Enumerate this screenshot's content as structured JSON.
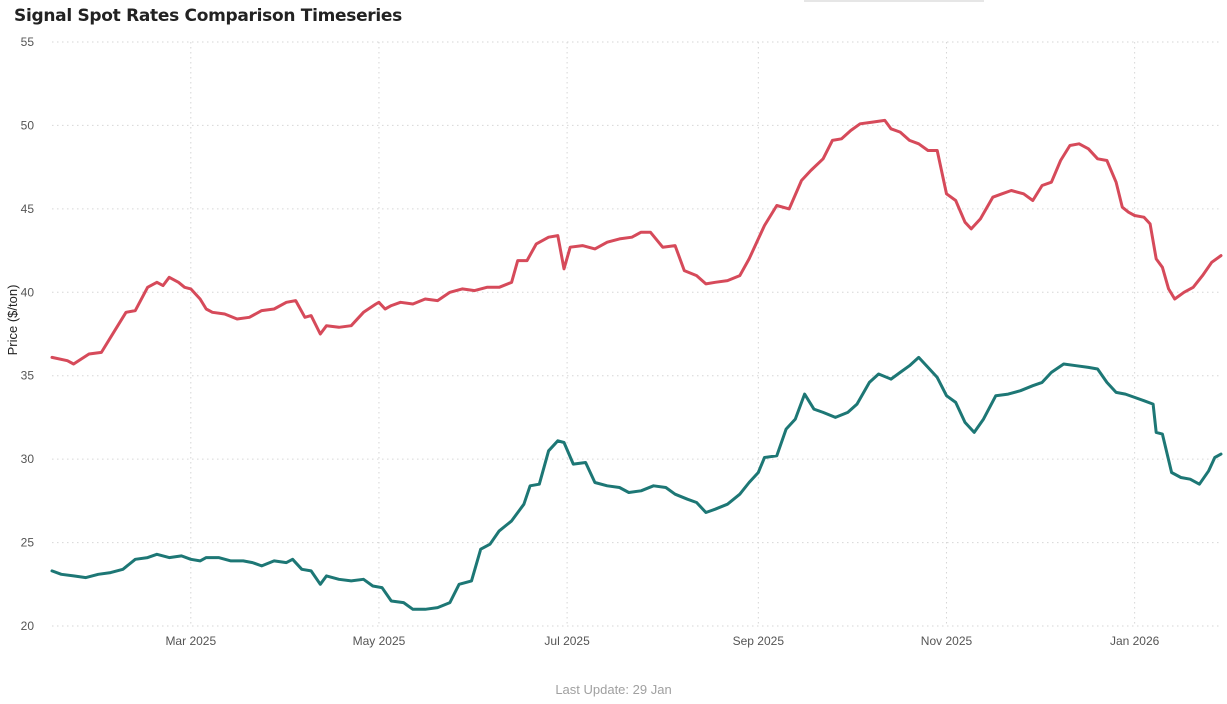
{
  "header": {
    "title": "Signal Spot Rates Comparison Timeseries"
  },
  "footer": {
    "last_update": "Last Update: 29 Jan"
  },
  "chart_data": {
    "type": "line",
    "title": "Signal Spot Rates Comparison Timeseries",
    "xlabel": "",
    "ylabel": "Price ($/ton)",
    "ylim": [
      20,
      55
    ],
    "yticks": [
      20,
      25,
      30,
      35,
      40,
      45,
      50,
      55
    ],
    "xlim": [
      "2025-01-15",
      "2026-01-29"
    ],
    "xticks": [
      {
        "date": "2025-03-01",
        "label": "Mar 2025"
      },
      {
        "date": "2025-05-01",
        "label": "May 2025"
      },
      {
        "date": "2025-07-01",
        "label": "Jul 2025"
      },
      {
        "date": "2025-09-01",
        "label": "Sep 2025"
      },
      {
        "date": "2025-11-01",
        "label": "Nov 2025"
      },
      {
        "date": "2026-01-01",
        "label": "Jan 2026"
      }
    ],
    "grid": true,
    "legend": "none",
    "series": [
      {
        "color": "#d64a5a",
        "points": [
          [
            "2025-01-15",
            36.1
          ],
          [
            "2025-01-20",
            35.9
          ],
          [
            "2025-01-22",
            35.7
          ],
          [
            "2025-01-27",
            36.3
          ],
          [
            "2025-01-31",
            36.4
          ],
          [
            "2025-02-04",
            37.6
          ],
          [
            "2025-02-08",
            38.8
          ],
          [
            "2025-02-11",
            38.9
          ],
          [
            "2025-02-15",
            40.3
          ],
          [
            "2025-02-18",
            40.6
          ],
          [
            "2025-02-20",
            40.4
          ],
          [
            "2025-02-22",
            40.9
          ],
          [
            "2025-02-25",
            40.6
          ],
          [
            "2025-02-27",
            40.3
          ],
          [
            "2025-03-01",
            40.2
          ],
          [
            "2025-03-04",
            39.6
          ],
          [
            "2025-03-06",
            39.0
          ],
          [
            "2025-03-08",
            38.8
          ],
          [
            "2025-03-12",
            38.7
          ],
          [
            "2025-03-16",
            38.4
          ],
          [
            "2025-03-20",
            38.5
          ],
          [
            "2025-03-24",
            38.9
          ],
          [
            "2025-03-28",
            39.0
          ],
          [
            "2025-04-01",
            39.4
          ],
          [
            "2025-04-04",
            39.5
          ],
          [
            "2025-04-07",
            38.5
          ],
          [
            "2025-04-09",
            38.6
          ],
          [
            "2025-04-12",
            37.5
          ],
          [
            "2025-04-14",
            38.0
          ],
          [
            "2025-04-18",
            37.9
          ],
          [
            "2025-04-22",
            38.0
          ],
          [
            "2025-04-26",
            38.8
          ],
          [
            "2025-04-30",
            39.3
          ],
          [
            "2025-05-01",
            39.4
          ],
          [
            "2025-05-03",
            39.0
          ],
          [
            "2025-05-05",
            39.2
          ],
          [
            "2025-05-08",
            39.4
          ],
          [
            "2025-05-12",
            39.3
          ],
          [
            "2025-05-16",
            39.6
          ],
          [
            "2025-05-20",
            39.5
          ],
          [
            "2025-05-24",
            40.0
          ],
          [
            "2025-05-28",
            40.2
          ],
          [
            "2025-06-01",
            40.1
          ],
          [
            "2025-06-05",
            40.3
          ],
          [
            "2025-06-09",
            40.3
          ],
          [
            "2025-06-13",
            40.6
          ],
          [
            "2025-06-15",
            41.9
          ],
          [
            "2025-06-18",
            41.9
          ],
          [
            "2025-06-21",
            42.9
          ],
          [
            "2025-06-25",
            43.3
          ],
          [
            "2025-06-28",
            43.4
          ],
          [
            "2025-06-30",
            41.4
          ],
          [
            "2025-07-02",
            42.7
          ],
          [
            "2025-07-06",
            42.8
          ],
          [
            "2025-07-10",
            42.6
          ],
          [
            "2025-07-14",
            43.0
          ],
          [
            "2025-07-18",
            43.2
          ],
          [
            "2025-07-22",
            43.3
          ],
          [
            "2025-07-25",
            43.6
          ],
          [
            "2025-07-28",
            43.6
          ],
          [
            "2025-08-01",
            42.7
          ],
          [
            "2025-08-05",
            42.8
          ],
          [
            "2025-08-08",
            41.3
          ],
          [
            "2025-08-12",
            41.0
          ],
          [
            "2025-08-15",
            40.5
          ],
          [
            "2025-08-18",
            40.6
          ],
          [
            "2025-08-22",
            40.7
          ],
          [
            "2025-08-26",
            41.0
          ],
          [
            "2025-08-29",
            42.0
          ],
          [
            "2025-09-01",
            43.2
          ],
          [
            "2025-09-03",
            44.0
          ],
          [
            "2025-09-07",
            45.2
          ],
          [
            "2025-09-11",
            45.0
          ],
          [
            "2025-09-15",
            46.7
          ],
          [
            "2025-09-18",
            47.3
          ],
          [
            "2025-09-22",
            48.0
          ],
          [
            "2025-09-25",
            49.1
          ],
          [
            "2025-09-28",
            49.2
          ],
          [
            "2025-10-01",
            49.7
          ],
          [
            "2025-10-04",
            50.1
          ],
          [
            "2025-10-08",
            50.2
          ],
          [
            "2025-10-12",
            50.3
          ],
          [
            "2025-10-14",
            49.8
          ],
          [
            "2025-10-17",
            49.6
          ],
          [
            "2025-10-20",
            49.1
          ],
          [
            "2025-10-23",
            48.9
          ],
          [
            "2025-10-26",
            48.5
          ],
          [
            "2025-10-29",
            48.5
          ],
          [
            "2025-11-01",
            45.9
          ],
          [
            "2025-11-04",
            45.5
          ],
          [
            "2025-11-07",
            44.2
          ],
          [
            "2025-11-09",
            43.8
          ],
          [
            "2025-11-12",
            44.4
          ],
          [
            "2025-11-16",
            45.7
          ],
          [
            "2025-11-19",
            45.9
          ],
          [
            "2025-11-22",
            46.1
          ],
          [
            "2025-11-26",
            45.9
          ],
          [
            "2025-11-29",
            45.5
          ],
          [
            "2025-12-02",
            46.4
          ],
          [
            "2025-12-05",
            46.6
          ],
          [
            "2025-12-08",
            47.9
          ],
          [
            "2025-12-11",
            48.8
          ],
          [
            "2025-12-14",
            48.9
          ],
          [
            "2025-12-17",
            48.6
          ],
          [
            "2025-12-20",
            48.0
          ],
          [
            "2025-12-23",
            47.9
          ],
          [
            "2025-12-26",
            46.6
          ],
          [
            "2025-12-28",
            45.1
          ],
          [
            "2025-12-30",
            44.8
          ],
          [
            "2026-01-01",
            44.6
          ],
          [
            "2026-01-04",
            44.5
          ],
          [
            "2026-01-06",
            44.1
          ],
          [
            "2026-01-08",
            42.0
          ],
          [
            "2026-01-10",
            41.5
          ],
          [
            "2026-01-12",
            40.2
          ],
          [
            "2026-01-14",
            39.6
          ],
          [
            "2026-01-17",
            40.0
          ],
          [
            "2026-01-20",
            40.3
          ],
          [
            "2026-01-23",
            41.0
          ],
          [
            "2026-01-26",
            41.8
          ],
          [
            "2026-01-29",
            42.2
          ]
        ]
      },
      {
        "color": "#1d7775",
        "points": [
          [
            "2025-01-15",
            23.3
          ],
          [
            "2025-01-18",
            23.1
          ],
          [
            "2025-01-22",
            23.0
          ],
          [
            "2025-01-26",
            22.9
          ],
          [
            "2025-01-30",
            23.1
          ],
          [
            "2025-02-03",
            23.2
          ],
          [
            "2025-02-07",
            23.4
          ],
          [
            "2025-02-11",
            24.0
          ],
          [
            "2025-02-15",
            24.1
          ],
          [
            "2025-02-18",
            24.3
          ],
          [
            "2025-02-22",
            24.1
          ],
          [
            "2025-02-26",
            24.2
          ],
          [
            "2025-03-01",
            24.0
          ],
          [
            "2025-03-04",
            23.9
          ],
          [
            "2025-03-06",
            24.1
          ],
          [
            "2025-03-10",
            24.1
          ],
          [
            "2025-03-14",
            23.9
          ],
          [
            "2025-03-18",
            23.9
          ],
          [
            "2025-03-21",
            23.8
          ],
          [
            "2025-03-24",
            23.6
          ],
          [
            "2025-03-28",
            23.9
          ],
          [
            "2025-04-01",
            23.8
          ],
          [
            "2025-04-03",
            24.0
          ],
          [
            "2025-04-06",
            23.4
          ],
          [
            "2025-04-09",
            23.3
          ],
          [
            "2025-04-12",
            22.5
          ],
          [
            "2025-04-14",
            23.0
          ],
          [
            "2025-04-18",
            22.8
          ],
          [
            "2025-04-22",
            22.7
          ],
          [
            "2025-04-26",
            22.8
          ],
          [
            "2025-04-29",
            22.4
          ],
          [
            "2025-05-02",
            22.3
          ],
          [
            "2025-05-05",
            21.5
          ],
          [
            "2025-05-09",
            21.4
          ],
          [
            "2025-05-12",
            21.0
          ],
          [
            "2025-05-16",
            21.0
          ],
          [
            "2025-05-20",
            21.1
          ],
          [
            "2025-05-24",
            21.4
          ],
          [
            "2025-05-27",
            22.5
          ],
          [
            "2025-05-31",
            22.7
          ],
          [
            "2025-06-03",
            24.6
          ],
          [
            "2025-06-06",
            24.9
          ],
          [
            "2025-06-09",
            25.7
          ],
          [
            "2025-06-13",
            26.3
          ],
          [
            "2025-06-17",
            27.3
          ],
          [
            "2025-06-19",
            28.4
          ],
          [
            "2025-06-22",
            28.5
          ],
          [
            "2025-06-25",
            30.5
          ],
          [
            "2025-06-28",
            31.1
          ],
          [
            "2025-06-30",
            31.0
          ],
          [
            "2025-07-03",
            29.7
          ],
          [
            "2025-07-07",
            29.8
          ],
          [
            "2025-07-10",
            28.6
          ],
          [
            "2025-07-14",
            28.4
          ],
          [
            "2025-07-18",
            28.3
          ],
          [
            "2025-07-21",
            28.0
          ],
          [
            "2025-07-25",
            28.1
          ],
          [
            "2025-07-29",
            28.4
          ],
          [
            "2025-08-02",
            28.3
          ],
          [
            "2025-08-05",
            27.9
          ],
          [
            "2025-08-09",
            27.6
          ],
          [
            "2025-08-12",
            27.4
          ],
          [
            "2025-08-15",
            26.8
          ],
          [
            "2025-08-18",
            27.0
          ],
          [
            "2025-08-22",
            27.3
          ],
          [
            "2025-08-26",
            27.9
          ],
          [
            "2025-08-29",
            28.6
          ],
          [
            "2025-09-01",
            29.2
          ],
          [
            "2025-09-03",
            30.1
          ],
          [
            "2025-09-07",
            30.2
          ],
          [
            "2025-09-10",
            31.8
          ],
          [
            "2025-09-13",
            32.4
          ],
          [
            "2025-09-16",
            33.9
          ],
          [
            "2025-09-19",
            33.0
          ],
          [
            "2025-09-22",
            32.8
          ],
          [
            "2025-09-26",
            32.5
          ],
          [
            "2025-09-30",
            32.8
          ],
          [
            "2025-10-03",
            33.3
          ],
          [
            "2025-10-07",
            34.6
          ],
          [
            "2025-10-10",
            35.1
          ],
          [
            "2025-10-14",
            34.8
          ],
          [
            "2025-10-17",
            35.2
          ],
          [
            "2025-10-20",
            35.6
          ],
          [
            "2025-10-23",
            36.1
          ],
          [
            "2025-10-26",
            35.5
          ],
          [
            "2025-10-29",
            34.9
          ],
          [
            "2025-11-01",
            33.8
          ],
          [
            "2025-11-04",
            33.4
          ],
          [
            "2025-11-07",
            32.2
          ],
          [
            "2025-11-10",
            31.6
          ],
          [
            "2025-11-13",
            32.4
          ],
          [
            "2025-11-17",
            33.8
          ],
          [
            "2025-11-21",
            33.9
          ],
          [
            "2025-11-25",
            34.1
          ],
          [
            "2025-11-29",
            34.4
          ],
          [
            "2025-12-02",
            34.6
          ],
          [
            "2025-12-05",
            35.2
          ],
          [
            "2025-12-09",
            35.7
          ],
          [
            "2025-12-13",
            35.6
          ],
          [
            "2025-12-17",
            35.5
          ],
          [
            "2025-12-20",
            35.4
          ],
          [
            "2025-12-23",
            34.6
          ],
          [
            "2025-12-26",
            34.0
          ],
          [
            "2025-12-29",
            33.9
          ],
          [
            "2026-01-01",
            33.7
          ],
          [
            "2026-01-04",
            33.5
          ],
          [
            "2026-01-07",
            33.3
          ],
          [
            "2026-01-08",
            31.6
          ],
          [
            "2026-01-10",
            31.5
          ],
          [
            "2026-01-13",
            29.2
          ],
          [
            "2026-01-16",
            28.9
          ],
          [
            "2026-01-19",
            28.8
          ],
          [
            "2026-01-22",
            28.5
          ],
          [
            "2026-01-25",
            29.3
          ],
          [
            "2026-01-27",
            30.1
          ],
          [
            "2026-01-29",
            30.3
          ]
        ]
      }
    ]
  }
}
